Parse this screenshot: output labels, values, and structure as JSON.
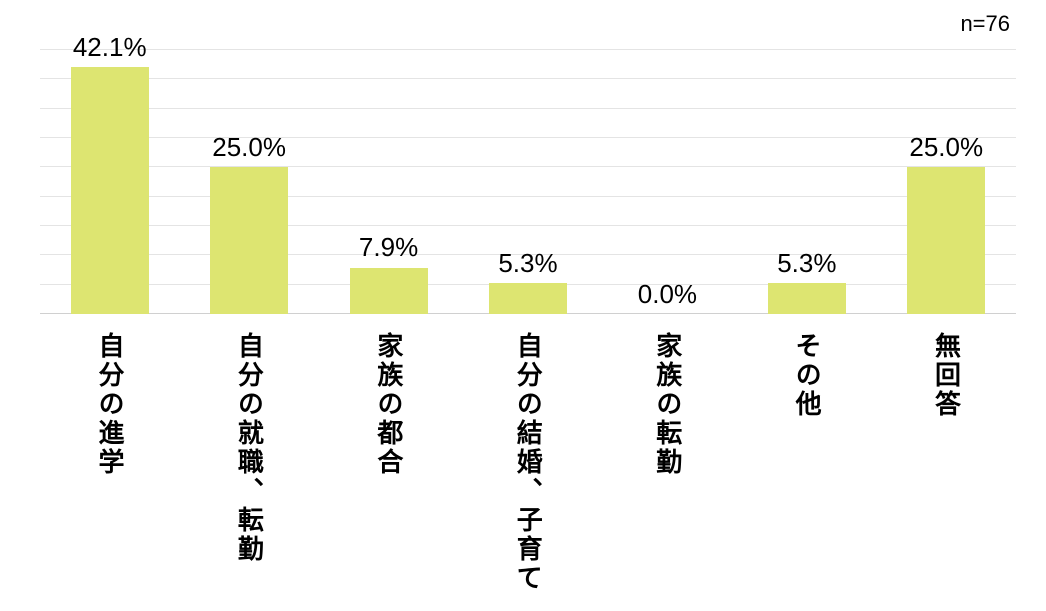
{
  "chart_data": {
    "type": "bar",
    "title": "",
    "xlabel": "",
    "ylabel": "",
    "annotation": "n=76",
    "categories": [
      "自分の進学",
      "自分の就職、転勤",
      "家族の都合",
      "自分の結婚、子育て",
      "家族の転勤",
      "その他",
      "無回答"
    ],
    "values": [
      42.1,
      25.0,
      7.9,
      5.3,
      0.0,
      5.3,
      25.0
    ],
    "value_suffix": "%",
    "value_decimals": 1,
    "ylim": [
      0,
      45
    ],
    "grid_step": 5,
    "grid_on": true,
    "legend": "none",
    "bar_color": "#dde571",
    "grid_color": "#e4e4e4",
    "axis_line_color": "#d0d0d0",
    "text_color": "#000000"
  }
}
